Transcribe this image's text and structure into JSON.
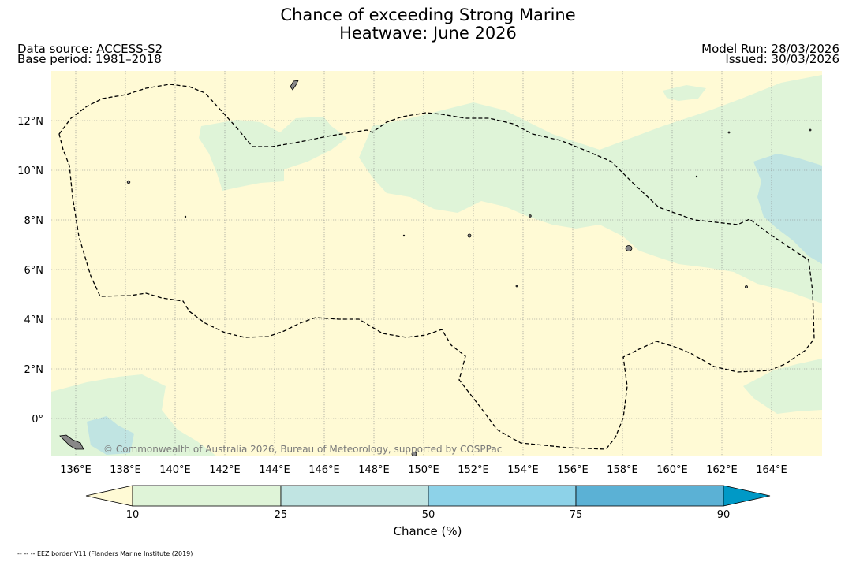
{
  "title": "Chance of exceeding Strong Marine\nHeatwave: June 2026",
  "data_source": "Data source: ACCESS-S2",
  "base_period": "Base period: 1981–2018",
  "model_run": "Model Run: 28/03/2026",
  "issued": "Issued: 30/03/2026",
  "map": {
    "lon_range": [
      135.0,
      166.0
    ],
    "lat_range": [
      -1.5,
      14.0
    ],
    "lon_ticks": [
      "136°E",
      "138°E",
      "140°E",
      "142°E",
      "144°E",
      "146°E",
      "148°E",
      "150°E",
      "152°E",
      "154°E",
      "156°E",
      "158°E",
      "160°E",
      "162°E",
      "164°E"
    ],
    "lat_ticks": [
      "0°",
      "2°N",
      "4°N",
      "6°N",
      "8°N",
      "10°N",
      "12°N"
    ],
    "background_color": "#fffad5",
    "grid": true,
    "copyright": "© Commonwealth of Australia 2026, Bureau of Meteorology, supported by COSPPac"
  },
  "colorbar": {
    "title": "Chance (%)",
    "tick_labels": [
      "10",
      "25",
      "50",
      "75",
      "90"
    ],
    "colors": [
      "#fffad5",
      "#dff4d8",
      "#c0e4e2",
      "#8dd2e8",
      "#5bb1d5",
      "#0099c6"
    ]
  },
  "footnote": "-- -- -- EEZ border V11 (Flanders Marine Institute (2019)"
}
